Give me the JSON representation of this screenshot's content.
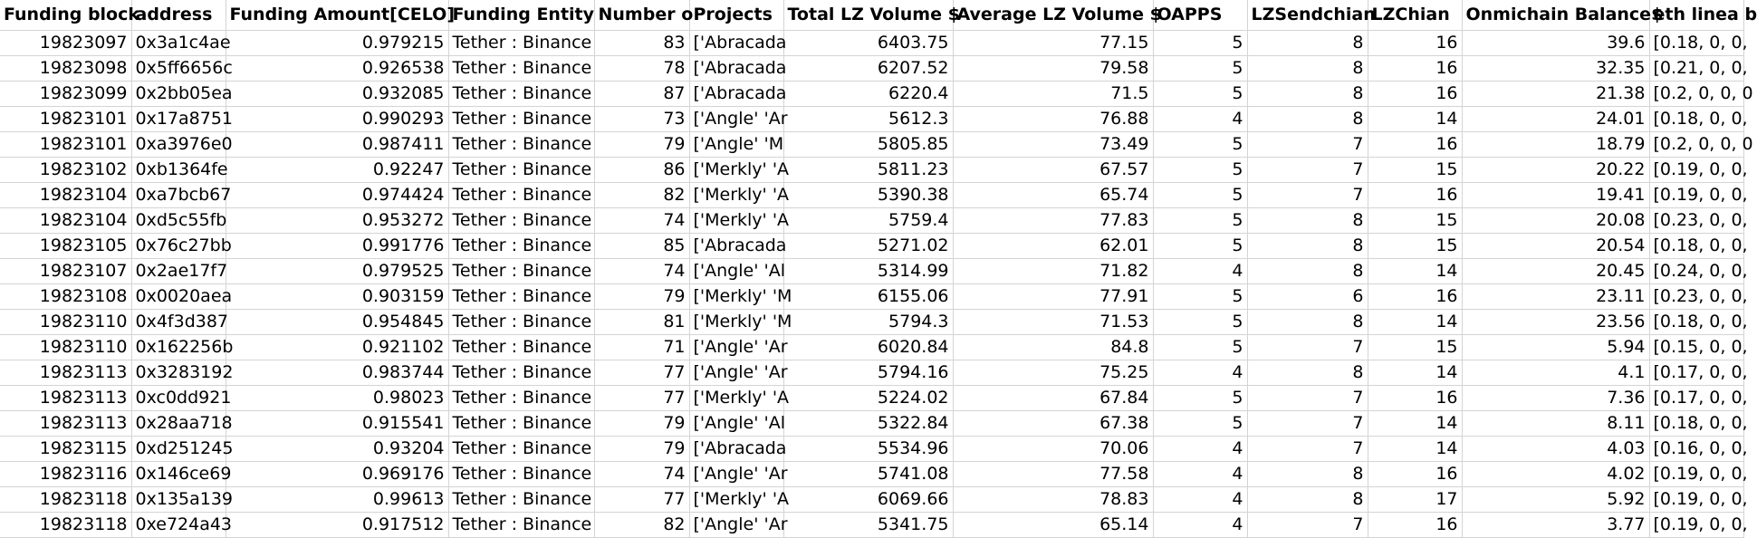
{
  "columns": [
    "Funding block",
    "address",
    "Funding Amount[CELO]",
    "Funding Entity",
    "Number o",
    "Projects",
    "Total LZ Volume $",
    "Average LZ Volume $",
    "OAPPS",
    "LZSendchian",
    "LZChian",
    "Onmichain Balance$",
    "eth linea b"
  ],
  "rows": [
    [
      "19823097",
      "0x3a1c4ae",
      "0.979215",
      "Tether : Binance",
      "83",
      "['Abracada",
      "6403.75",
      "77.15",
      "5",
      "8",
      "16",
      "39.6",
      "[0.18, 0, 0,"
    ],
    [
      "19823098",
      "0x5ff6656c",
      "0.926538",
      "Tether : Binance",
      "78",
      "['Abracada",
      "6207.52",
      "79.58",
      "5",
      "8",
      "16",
      "32.35",
      "[0.21, 0, 0,"
    ],
    [
      "19823099",
      "0x2bb05ea",
      "0.932085",
      "Tether : Binance",
      "87",
      "['Abracada",
      "6220.4",
      "71.5",
      "5",
      "8",
      "16",
      "21.38",
      "[0.2, 0, 0, 0"
    ],
    [
      "19823101",
      "0x17a8751",
      "0.990293",
      "Tether : Binance",
      "73",
      "['Angle' 'Ar",
      "5612.3",
      "76.88",
      "4",
      "8",
      "14",
      "24.01",
      "[0.18, 0, 0,"
    ],
    [
      "19823101",
      "0xa3976e0",
      "0.987411",
      "Tether : Binance",
      "79",
      "['Angle' 'M",
      "5805.85",
      "73.49",
      "5",
      "7",
      "16",
      "18.79",
      "[0.2, 0, 0, 0"
    ],
    [
      "19823102",
      "0xb1364fe",
      "0.92247",
      "Tether : Binance",
      "86",
      "['Merkly' 'A",
      "5811.23",
      "67.57",
      "5",
      "7",
      "15",
      "20.22",
      "[0.19, 0, 0,"
    ],
    [
      "19823104",
      "0xa7bcb67",
      "0.974424",
      "Tether : Binance",
      "82",
      "['Merkly' 'A",
      "5390.38",
      "65.74",
      "5",
      "7",
      "16",
      "19.41",
      "[0.19, 0, 0,"
    ],
    [
      "19823104",
      "0xd5c55fb",
      "0.953272",
      "Tether : Binance",
      "74",
      "['Merkly' 'A",
      "5759.4",
      "77.83",
      "5",
      "8",
      "15",
      "20.08",
      "[0.23, 0, 0,"
    ],
    [
      "19823105",
      "0x76c27bb",
      "0.991776",
      "Tether : Binance",
      "85",
      "['Abracada",
      "5271.02",
      "62.01",
      "5",
      "8",
      "15",
      "20.54",
      "[0.18, 0, 0,"
    ],
    [
      "19823107",
      "0x2ae17f7",
      "0.979525",
      "Tether : Binance",
      "74",
      "['Angle' 'Al",
      "5314.99",
      "71.82",
      "4",
      "8",
      "14",
      "20.45",
      "[0.24, 0, 0,"
    ],
    [
      "19823108",
      "0x0020aea",
      "0.903159",
      "Tether : Binance",
      "79",
      "['Merkly' 'M",
      "6155.06",
      "77.91",
      "5",
      "6",
      "16",
      "23.11",
      "[0.23, 0, 0,"
    ],
    [
      "19823110",
      "0x4f3d387",
      "0.954845",
      "Tether : Binance",
      "81",
      "['Merkly' 'M",
      "5794.3",
      "71.53",
      "5",
      "8",
      "14",
      "23.56",
      "[0.18, 0, 0,"
    ],
    [
      "19823110",
      "0x162256b",
      "0.921102",
      "Tether : Binance",
      "71",
      "['Angle' 'Ar",
      "6020.84",
      "84.8",
      "5",
      "7",
      "15",
      "5.94",
      "[0.15, 0, 0,"
    ],
    [
      "19823113",
      "0x3283192",
      "0.983744",
      "Tether : Binance",
      "77",
      "['Angle' 'Ar",
      "5794.16",
      "75.25",
      "4",
      "8",
      "14",
      "4.1",
      "[0.17, 0, 0,"
    ],
    [
      "19823113",
      "0xc0dd921",
      "0.98023",
      "Tether : Binance",
      "77",
      "['Merkly' 'A",
      "5224.02",
      "67.84",
      "5",
      "7",
      "16",
      "7.36",
      "[0.17, 0, 0,"
    ],
    [
      "19823113",
      "0x28aa718",
      "0.915541",
      "Tether : Binance",
      "79",
      "['Angle' 'Al",
      "5322.84",
      "67.38",
      "5",
      "7",
      "14",
      "8.11",
      "[0.18, 0, 0,"
    ],
    [
      "19823115",
      "0xd251245",
      "0.93204",
      "Tether : Binance",
      "79",
      "['Abracada",
      "5534.96",
      "70.06",
      "4",
      "7",
      "14",
      "4.03",
      "[0.16, 0, 0,"
    ],
    [
      "19823116",
      "0x146ce69",
      "0.969176",
      "Tether : Binance",
      "74",
      "['Angle' 'Ar",
      "5741.08",
      "77.58",
      "4",
      "8",
      "16",
      "4.02",
      "[0.19, 0, 0,"
    ],
    [
      "19823118",
      "0x135a139",
      "0.99613",
      "Tether : Binance",
      "77",
      "['Merkly' 'A",
      "6069.66",
      "78.83",
      "4",
      "8",
      "17",
      "5.92",
      "[0.19, 0, 0,"
    ],
    [
      "19823118",
      "0xe724a43",
      "0.917512",
      "Tether : Binance",
      "82",
      "['Angle' 'Ar",
      "5341.75",
      "65.14",
      "4",
      "7",
      "16",
      "3.77",
      "[0.19, 0, 0,"
    ]
  ]
}
